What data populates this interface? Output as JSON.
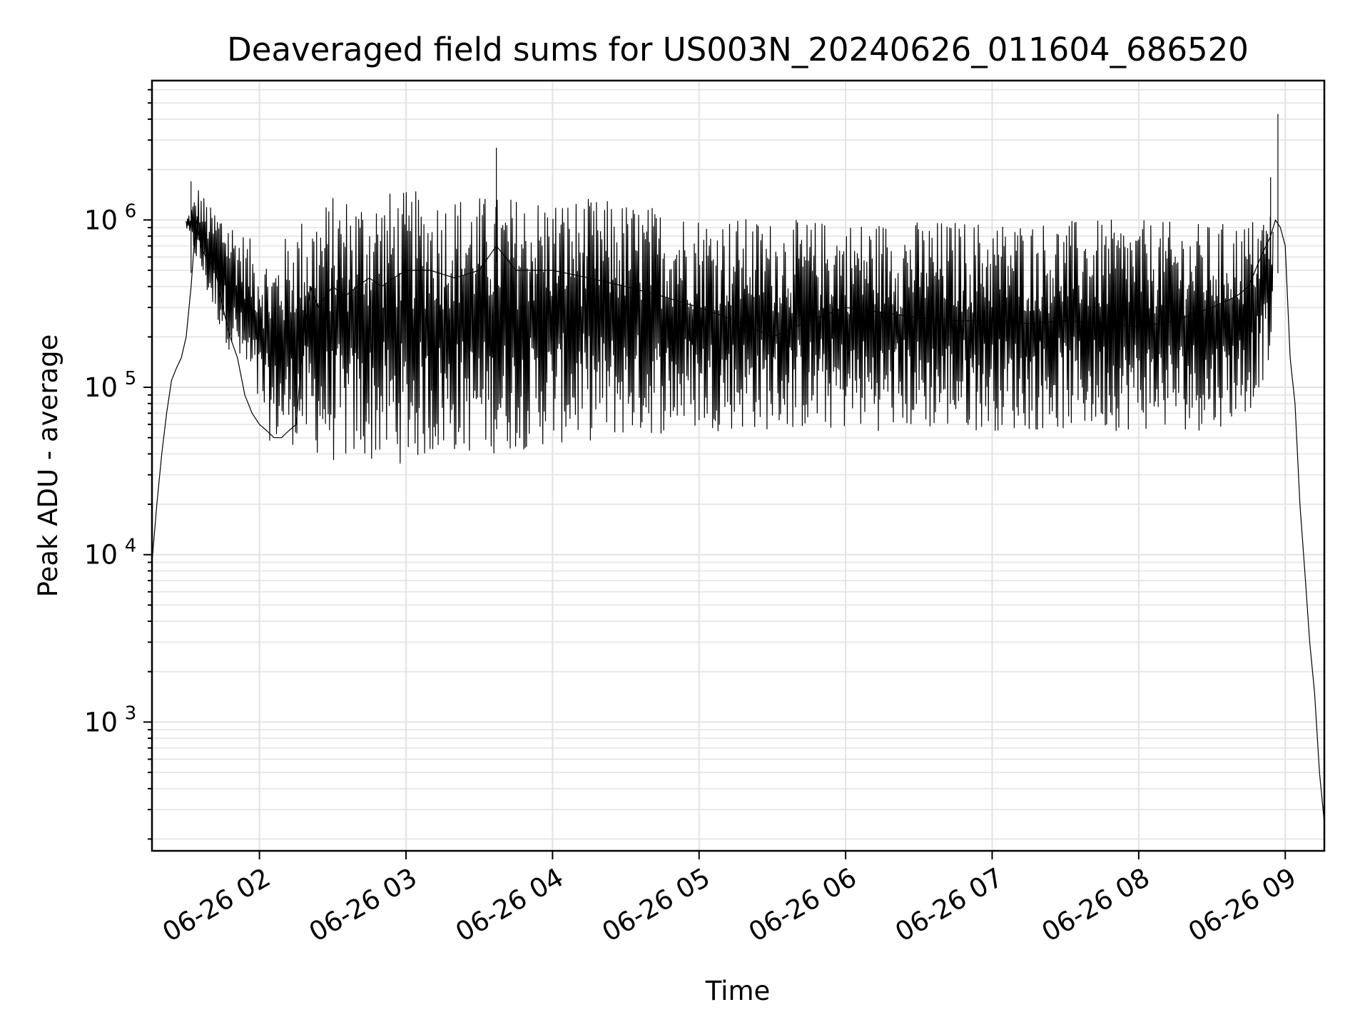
{
  "chart_data": {
    "type": "line",
    "title": "Deaveraged field sums for US003N_20240626_011604_686520",
    "xlabel": "Time",
    "ylabel": "Peak ADU - average",
    "yscale": "log",
    "xlim": [
      "06-26 01:16",
      "06-26 09:16"
    ],
    "ylim": [
      170,
      6800000
    ],
    "grid": true,
    "x_tick_labels": [
      "06-26 02",
      "06-26 03",
      "06-26 04",
      "06-26 05",
      "06-26 06",
      "06-26 07",
      "06-26 08",
      "06-26 09"
    ],
    "y_ticks": [
      {
        "base": "10",
        "exp": "3",
        "value": 1000
      },
      {
        "base": "10",
        "exp": "4",
        "value": 10000
      },
      {
        "base": "10",
        "exp": "5",
        "value": 100000
      },
      {
        "base": "10",
        "exp": "6",
        "value": 1000000
      }
    ],
    "series": [
      {
        "x": [
          "06-26 01:16",
          "06-26 01:18",
          "06-26 01:20",
          "06-26 01:22",
          "06-26 01:24",
          "06-26 01:26",
          "06-26 01:28",
          "06-26 01:30",
          "06-26 01:32",
          "06-26 01:34",
          "06-26 01:36",
          "06-26 01:38",
          "06-26 01:40",
          "06-26 01:42",
          "06-26 01:45",
          "06-26 01:48",
          "06-26 01:51",
          "06-26 01:54",
          "06-26 01:57",
          "06-26 02:00",
          "06-26 02:03",
          "06-26 02:06",
          "06-26 02:09",
          "06-26 02:12",
          "06-26 02:15",
          "06-26 02:18",
          "06-26 02:21",
          "06-26 02:24",
          "06-26 02:27",
          "06-26 02:30",
          "06-26 02:35",
          "06-26 02:40",
          "06-26 02:45",
          "06-26 02:50",
          "06-26 02:55",
          "06-26 03:00",
          "06-26 03:10",
          "06-26 03:20",
          "06-26 03:30",
          "06-26 03:37",
          "06-26 03:45",
          "06-26 04:00",
          "06-26 04:15",
          "06-26 04:30",
          "06-26 04:45",
          "06-26 05:00",
          "06-26 05:15",
          "06-26 05:30",
          "06-26 05:45",
          "06-26 06:00",
          "06-26 06:15",
          "06-26 06:30",
          "06-26 06:45",
          "06-26 07:00",
          "06-26 07:15",
          "06-26 07:30",
          "06-26 07:45",
          "06-26 08:00",
          "06-26 08:15",
          "06-26 08:30",
          "06-26 08:40",
          "06-26 08:45",
          "06-26 08:50",
          "06-26 08:54",
          "06-26 08:56",
          "06-26 08:58",
          "06-26 09:00",
          "06-26 09:02",
          "06-26 09:04",
          "06-26 09:06",
          "06-26 09:08",
          "06-26 09:10",
          "06-26 09:12",
          "06-26 09:14",
          "06-26 09:16"
        ],
        "y": [
          9000,
          20000,
          40000,
          70000,
          110000,
          130000,
          150000,
          200000,
          400000,
          1000000,
          700000,
          600000,
          550000,
          500000,
          300000,
          200000,
          150000,
          90000,
          70000,
          60000,
          55000,
          50000,
          50000,
          55000,
          60000,
          200000,
          400000,
          300000,
          350000,
          400000,
          350000,
          400000,
          450000,
          400000,
          450000,
          500000,
          500000,
          450000,
          500000,
          700000,
          500000,
          500000,
          450000,
          400000,
          350000,
          300000,
          250000,
          200000,
          250000,
          300000,
          280000,
          260000,
          250000,
          250000,
          240000,
          250000,
          240000,
          230000,
          250000,
          300000,
          350000,
          400000,
          600000,
          800000,
          1000000,
          900000,
          700000,
          150000,
          80000,
          20000,
          8000,
          3000,
          1500,
          500,
          250
        ]
      }
    ],
    "envelope": {
      "x": [
        "06-26 01:30",
        "06-26 01:35",
        "06-26 01:40",
        "06-26 01:45",
        "06-26 01:55",
        "06-26 02:05",
        "06-26 02:15",
        "06-26 02:30",
        "06-26 02:45",
        "06-26 03:00",
        "06-26 03:20",
        "06-26 03:37",
        "06-26 04:00",
        "06-26 04:30",
        "06-26 05:00",
        "06-26 05:30",
        "06-26 06:00",
        "06-26 06:30",
        "06-26 07:00",
        "06-26 07:30",
        "06-26 08:00",
        "06-26 08:30",
        "06-26 08:45",
        "06-26 08:55"
      ],
      "upper": [
        1000000,
        1600000,
        1200000,
        1200000,
        800000,
        600000,
        1000000,
        1400000,
        1500000,
        1500000,
        1450000,
        1400000,
        1400000,
        1300000,
        1100000,
        1000000,
        1000000,
        1000000,
        1000000,
        1000000,
        1000000,
        950000,
        1000000,
        1200000
      ],
      "lower": [
        900000,
        500000,
        300000,
        200000,
        100000,
        45000,
        45000,
        35000,
        35000,
        35000,
        40000,
        40000,
        45000,
        50000,
        55000,
        55000,
        55000,
        55000,
        55000,
        55000,
        55000,
        55000,
        70000,
        150000
      ]
    },
    "spikes": [
      {
        "x": "06-26 03:37",
        "y": 2700000
      },
      {
        "x": "06-26 08:57",
        "y": 4300000
      },
      {
        "x": "06-26 08:54",
        "y": 1800000
      },
      {
        "x": "06-26 01:32",
        "y": 1700000
      }
    ]
  }
}
